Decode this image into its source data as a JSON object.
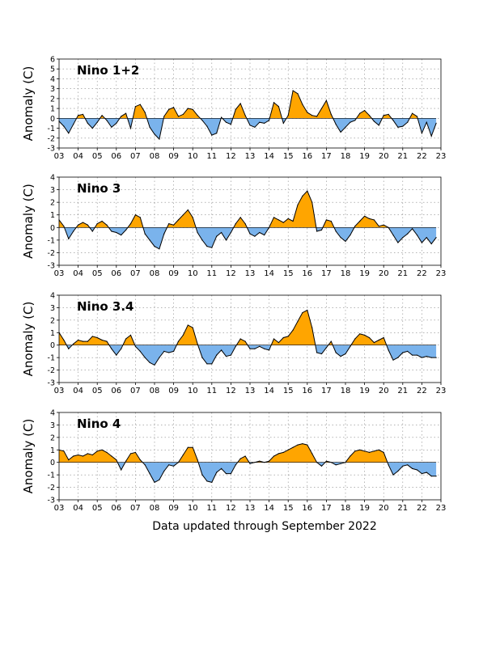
{
  "footer_text": "Data updated through September 2022",
  "colors": {
    "positive": "#FFA500",
    "negative": "#7AB3EC",
    "outline": "#000000",
    "grid": "#888888"
  },
  "chart_data": [
    {
      "type": "area",
      "title": "Nino 1+2",
      "ylabel": "Anomaly (C)",
      "ylim": [
        -3,
        6
      ],
      "yticks": [
        "-3",
        "-2",
        "-1",
        "0",
        "1",
        "2",
        "3",
        "4",
        "5",
        "6"
      ],
      "xlim": [
        2003,
        2023
      ],
      "xticks": [
        "03",
        "04",
        "05",
        "06",
        "07",
        "08",
        "09",
        "10",
        "11",
        "12",
        "13",
        "14",
        "15",
        "16",
        "17",
        "18",
        "19",
        "20",
        "21",
        "22",
        "23"
      ],
      "grid": true,
      "x": [
        2003.0,
        2003.25,
        2003.5,
        2003.75,
        2004.0,
        2004.25,
        2004.5,
        2004.75,
        2005.0,
        2005.25,
        2005.5,
        2005.75,
        2006.0,
        2006.25,
        2006.5,
        2006.75,
        2007.0,
        2007.25,
        2007.5,
        2007.75,
        2008.0,
        2008.25,
        2008.5,
        2008.75,
        2009.0,
        2009.25,
        2009.5,
        2009.75,
        2010.0,
        2010.25,
        2010.5,
        2010.75,
        2011.0,
        2011.25,
        2011.5,
        2011.75,
        2012.0,
        2012.25,
        2012.5,
        2012.75,
        2013.0,
        2013.25,
        2013.5,
        2013.75,
        2014.0,
        2014.25,
        2014.5,
        2014.75,
        2015.0,
        2015.25,
        2015.5,
        2015.75,
        2016.0,
        2016.25,
        2016.5,
        2016.75,
        2017.0,
        2017.25,
        2017.5,
        2017.75,
        2018.0,
        2018.25,
        2018.5,
        2018.75,
        2019.0,
        2019.25,
        2019.5,
        2019.75,
        2020.0,
        2020.25,
        2020.5,
        2020.75,
        2021.0,
        2021.25,
        2021.5,
        2021.75,
        2022.0,
        2022.25,
        2022.5,
        2022.75
      ],
      "values": [
        -0.3,
        -0.8,
        -1.5,
        -0.6,
        0.3,
        0.4,
        -0.5,
        -1.0,
        -0.4,
        0.3,
        -0.2,
        -0.9,
        -0.5,
        0.2,
        0.5,
        -1.0,
        1.2,
        1.4,
        0.6,
        -0.9,
        -1.6,
        -2.1,
        0.2,
        0.9,
        1.1,
        0.2,
        0.4,
        1.0,
        0.9,
        0.3,
        -0.2,
        -0.8,
        -1.7,
        -1.5,
        0.1,
        -0.4,
        -0.6,
        0.9,
        1.5,
        0.3,
        -0.7,
        -0.9,
        -0.4,
        -0.5,
        -0.2,
        1.6,
        1.2,
        -0.5,
        0.3,
        2.8,
        2.5,
        1.4,
        0.6,
        0.3,
        0.2,
        1.0,
        1.8,
        0.4,
        -0.6,
        -1.4,
        -0.9,
        -0.4,
        -0.2,
        0.5,
        0.8,
        0.3,
        -0.3,
        -0.7,
        0.3,
        0.4,
        -0.2,
        -0.9,
        -0.8,
        -0.4,
        0.5,
        0.2,
        -1.5,
        -0.4,
        -1.8,
        -0.5
      ]
    },
    {
      "type": "area",
      "title": "Nino 3",
      "ylabel": "Anomaly (C)",
      "ylim": [
        -3,
        4
      ],
      "yticks": [
        "-3",
        "-2",
        "-1",
        "0",
        "1",
        "2",
        "3",
        "4"
      ],
      "xlim": [
        2003,
        2023
      ],
      "xticks": [
        "03",
        "04",
        "05",
        "06",
        "07",
        "08",
        "09",
        "10",
        "11",
        "12",
        "13",
        "14",
        "15",
        "16",
        "17",
        "18",
        "19",
        "20",
        "21",
        "22",
        "23"
      ],
      "grid": true,
      "x": [
        2003.0,
        2003.25,
        2003.5,
        2003.75,
        2004.0,
        2004.25,
        2004.5,
        2004.75,
        2005.0,
        2005.25,
        2005.5,
        2005.75,
        2006.0,
        2006.25,
        2006.5,
        2006.75,
        2007.0,
        2007.25,
        2007.5,
        2007.75,
        2008.0,
        2008.25,
        2008.5,
        2008.75,
        2009.0,
        2009.25,
        2009.5,
        2009.75,
        2010.0,
        2010.25,
        2010.5,
        2010.75,
        2011.0,
        2011.25,
        2011.5,
        2011.75,
        2012.0,
        2012.25,
        2012.5,
        2012.75,
        2013.0,
        2013.25,
        2013.5,
        2013.75,
        2014.0,
        2014.25,
        2014.5,
        2014.75,
        2015.0,
        2015.25,
        2015.5,
        2015.75,
        2016.0,
        2016.25,
        2016.5,
        2016.75,
        2017.0,
        2017.25,
        2017.5,
        2017.75,
        2018.0,
        2018.25,
        2018.5,
        2018.75,
        2019.0,
        2019.25,
        2019.5,
        2019.75,
        2020.0,
        2020.25,
        2020.5,
        2020.75,
        2021.0,
        2021.25,
        2021.5,
        2021.75,
        2022.0,
        2022.25,
        2022.5,
        2022.75
      ],
      "values": [
        0.6,
        0.1,
        -0.9,
        -0.3,
        0.2,
        0.4,
        0.2,
        -0.3,
        0.3,
        0.5,
        0.2,
        -0.3,
        -0.4,
        -0.6,
        -0.2,
        0.3,
        1.0,
        0.8,
        -0.5,
        -1.0,
        -1.5,
        -1.7,
        -0.5,
        0.3,
        0.2,
        0.6,
        1.0,
        1.4,
        0.8,
        -0.4,
        -1.0,
        -1.5,
        -1.6,
        -0.7,
        -0.4,
        -1.0,
        -0.4,
        0.3,
        0.8,
        0.3,
        -0.5,
        -0.7,
        -0.4,
        -0.6,
        0.0,
        0.8,
        0.6,
        0.4,
        0.7,
        0.5,
        1.8,
        2.5,
        2.9,
        2.0,
        -0.3,
        -0.2,
        0.6,
        0.5,
        -0.3,
        -0.8,
        -1.1,
        -0.6,
        0.1,
        0.5,
        0.9,
        0.7,
        0.6,
        0.1,
        0.2,
        0.0,
        -0.6,
        -1.2,
        -0.8,
        -0.5,
        -0.1,
        -0.6,
        -1.2,
        -0.8,
        -1.3,
        -0.8
      ]
    },
    {
      "type": "area",
      "title": "Nino 3.4",
      "ylabel": "Anomaly (C)",
      "ylim": [
        -3,
        4
      ],
      "yticks": [
        "-3",
        "-2",
        "-1",
        "0",
        "1",
        "2",
        "3",
        "4"
      ],
      "xlim": [
        2003,
        2023
      ],
      "xticks": [
        "03",
        "04",
        "05",
        "06",
        "07",
        "08",
        "09",
        "10",
        "11",
        "12",
        "13",
        "14",
        "15",
        "16",
        "17",
        "18",
        "19",
        "20",
        "21",
        "22",
        "23"
      ],
      "grid": true,
      "x": [
        2003.0,
        2003.25,
        2003.5,
        2003.75,
        2004.0,
        2004.25,
        2004.5,
        2004.75,
        2005.0,
        2005.25,
        2005.5,
        2005.75,
        2006.0,
        2006.25,
        2006.5,
        2006.75,
        2007.0,
        2007.25,
        2007.5,
        2007.75,
        2008.0,
        2008.25,
        2008.5,
        2008.75,
        2009.0,
        2009.25,
        2009.5,
        2009.75,
        2010.0,
        2010.25,
        2010.5,
        2010.75,
        2011.0,
        2011.25,
        2011.5,
        2011.75,
        2012.0,
        2012.25,
        2012.5,
        2012.75,
        2013.0,
        2013.25,
        2013.5,
        2013.75,
        2014.0,
        2014.25,
        2014.5,
        2014.75,
        2015.0,
        2015.25,
        2015.5,
        2015.75,
        2016.0,
        2016.25,
        2016.5,
        2016.75,
        2017.0,
        2017.25,
        2017.5,
        2017.75,
        2018.0,
        2018.25,
        2018.5,
        2018.75,
        2019.0,
        2019.25,
        2019.5,
        2019.75,
        2020.0,
        2020.25,
        2020.5,
        2020.75,
        2021.0,
        2021.25,
        2021.5,
        2021.75,
        2022.0,
        2022.25,
        2022.5,
        2022.75
      ],
      "values": [
        1.0,
        0.4,
        -0.3,
        0.1,
        0.4,
        0.3,
        0.3,
        0.7,
        0.6,
        0.4,
        0.3,
        -0.3,
        -0.8,
        -0.3,
        0.5,
        0.8,
        -0.1,
        -0.5,
        -1.0,
        -1.4,
        -1.6,
        -1.0,
        -0.5,
        -0.6,
        -0.5,
        0.3,
        0.8,
        1.6,
        1.4,
        0.1,
        -1.0,
        -1.5,
        -1.5,
        -0.8,
        -0.4,
        -0.9,
        -0.8,
        -0.1,
        0.5,
        0.3,
        -0.3,
        -0.3,
        -0.1,
        -0.3,
        -0.4,
        0.5,
        0.2,
        0.6,
        0.7,
        1.2,
        1.9,
        2.6,
        2.8,
        1.4,
        -0.6,
        -0.7,
        -0.2,
        0.3,
        -0.6,
        -0.9,
        -0.7,
        -0.1,
        0.5,
        0.9,
        0.8,
        0.6,
        0.2,
        0.4,
        0.6,
        -0.4,
        -1.2,
        -1.0,
        -0.6,
        -0.5,
        -0.8,
        -0.8,
        -1.0,
        -0.9,
        -1.0,
        -1.0
      ]
    },
    {
      "type": "area",
      "title": "Nino 4",
      "ylabel": "Anomaly (C)",
      "ylim": [
        -3,
        4
      ],
      "yticks": [
        "-3",
        "-2",
        "-1",
        "0",
        "1",
        "2",
        "3",
        "4"
      ],
      "xlim": [
        2003,
        2023
      ],
      "xticks": [
        "03",
        "04",
        "05",
        "06",
        "07",
        "08",
        "09",
        "10",
        "11",
        "12",
        "13",
        "14",
        "15",
        "16",
        "17",
        "18",
        "19",
        "20",
        "21",
        "22",
        "23"
      ],
      "grid": true,
      "x": [
        2003.0,
        2003.25,
        2003.5,
        2003.75,
        2004.0,
        2004.25,
        2004.5,
        2004.75,
        2005.0,
        2005.25,
        2005.5,
        2005.75,
        2006.0,
        2006.25,
        2006.5,
        2006.75,
        2007.0,
        2007.25,
        2007.5,
        2007.75,
        2008.0,
        2008.25,
        2008.5,
        2008.75,
        2009.0,
        2009.25,
        2009.5,
        2009.75,
        2010.0,
        2010.25,
        2010.5,
        2010.75,
        2011.0,
        2011.25,
        2011.5,
        2011.75,
        2012.0,
        2012.25,
        2012.5,
        2012.75,
        2013.0,
        2013.25,
        2013.5,
        2013.75,
        2014.0,
        2014.25,
        2014.5,
        2014.75,
        2015.0,
        2015.25,
        2015.5,
        2015.75,
        2016.0,
        2016.25,
        2016.5,
        2016.75,
        2017.0,
        2017.25,
        2017.5,
        2017.75,
        2018.0,
        2018.25,
        2018.5,
        2018.75,
        2019.0,
        2019.25,
        2019.5,
        2019.75,
        2020.0,
        2020.25,
        2020.5,
        2020.75,
        2021.0,
        2021.25,
        2021.5,
        2021.75,
        2022.0,
        2022.25,
        2022.5,
        2022.75
      ],
      "values": [
        1.0,
        0.9,
        0.2,
        0.5,
        0.6,
        0.5,
        0.7,
        0.6,
        0.9,
        1.0,
        0.8,
        0.5,
        0.2,
        -0.6,
        0.1,
        0.7,
        0.8,
        0.2,
        -0.2,
        -0.9,
        -1.6,
        -1.4,
        -0.7,
        -0.2,
        -0.3,
        0.0,
        0.6,
        1.2,
        1.2,
        0.2,
        -1.0,
        -1.5,
        -1.6,
        -0.8,
        -0.5,
        -0.9,
        -0.9,
        -0.2,
        0.3,
        0.5,
        -0.1,
        0.0,
        0.1,
        0.0,
        0.1,
        0.5,
        0.7,
        0.8,
        1.0,
        1.2,
        1.4,
        1.5,
        1.4,
        0.7,
        0.0,
        -0.3,
        0.1,
        0.0,
        -0.2,
        -0.1,
        0.0,
        0.5,
        0.9,
        1.0,
        0.9,
        0.8,
        0.9,
        1.0,
        0.8,
        -0.2,
        -1.0,
        -0.7,
        -0.3,
        -0.2,
        -0.5,
        -0.6,
        -0.9,
        -0.8,
        -1.1,
        -1.1
      ]
    }
  ]
}
